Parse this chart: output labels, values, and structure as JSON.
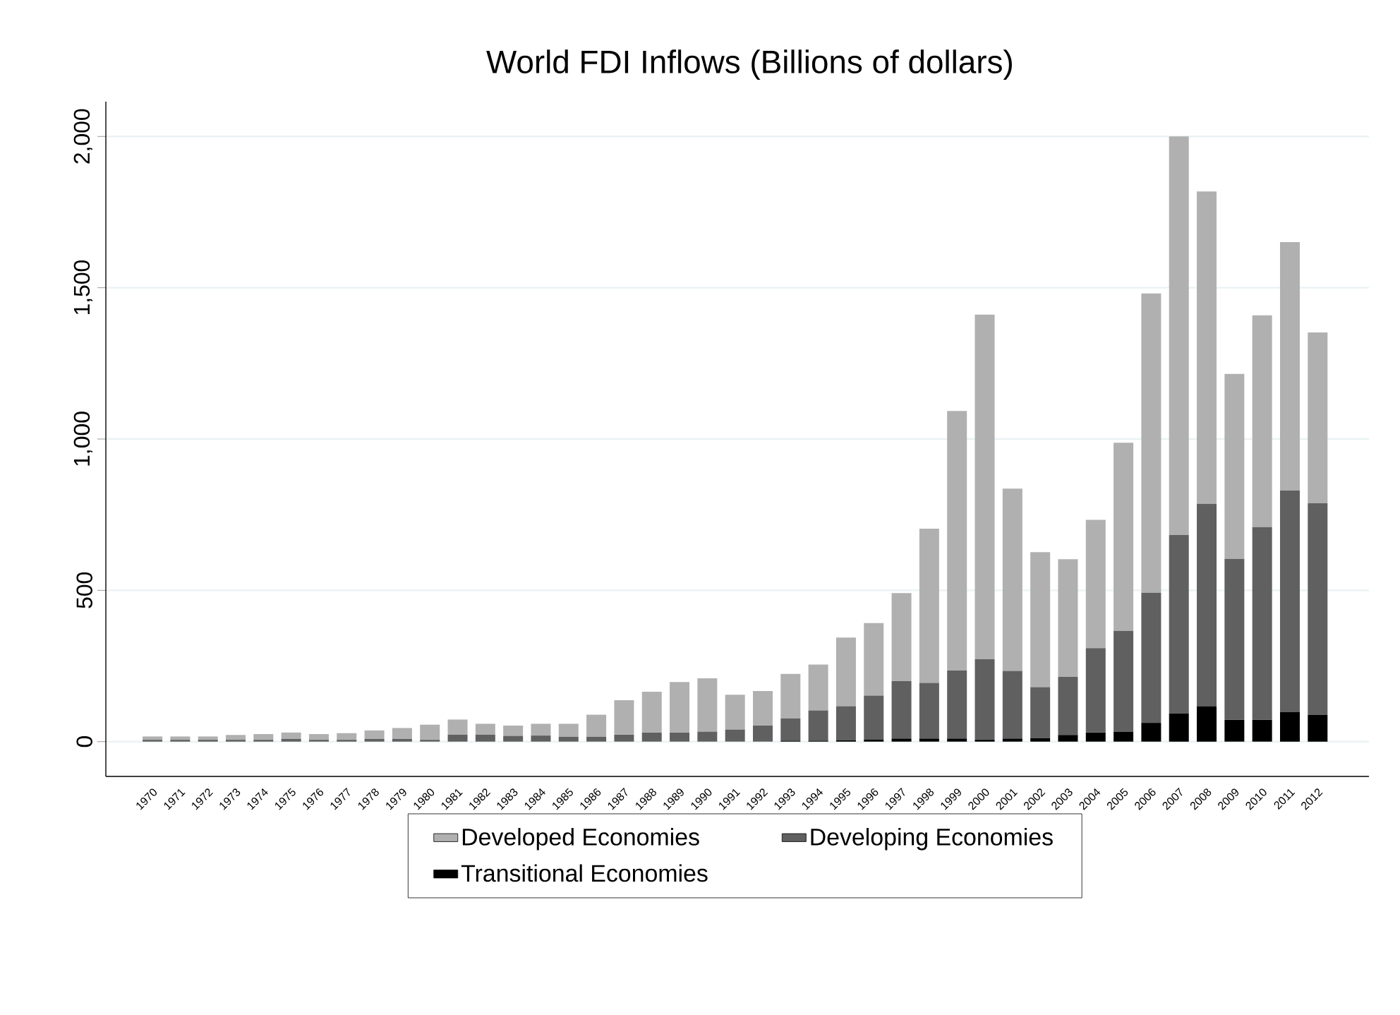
{
  "chart_data": {
    "type": "bar",
    "title": "World FDI Inflows (Billions of dollars)",
    "categories": [
      "1970",
      "1971",
      "1972",
      "1973",
      "1974",
      "1975",
      "1976",
      "1977",
      "1978",
      "1979",
      "1980",
      "1981",
      "1982",
      "1983",
      "1984",
      "1985",
      "1986",
      "1987",
      "1988",
      "1989",
      "1990",
      "1991",
      "1992",
      "1993",
      "1994",
      "1995",
      "1996",
      "1997",
      "1998",
      "1999",
      "2000",
      "2001",
      "2002",
      "2003",
      "2004",
      "2005",
      "2006",
      "2007",
      "2008",
      "2009",
      "2010",
      "2011",
      "2012"
    ],
    "stacked": true,
    "series": [
      {
        "name": "Transitional Economies",
        "color": "#000000",
        "values": [
          0,
          0,
          0,
          0,
          0,
          0,
          0,
          0,
          0,
          0,
          0,
          0,
          0,
          0,
          0,
          0,
          0,
          0,
          0,
          0,
          0,
          0,
          0,
          3,
          3,
          4,
          7,
          10,
          10,
          10,
          6,
          10,
          12,
          22,
          30,
          33,
          62,
          93,
          117,
          72,
          72,
          97,
          88
        ]
      },
      {
        "name": "Developing Economies",
        "color": "#606060",
        "values": [
          6,
          6,
          6,
          6,
          6,
          9,
          6,
          6,
          9,
          9,
          6,
          23,
          23,
          19,
          20,
          16,
          16,
          23,
          30,
          30,
          33,
          40,
          53,
          74,
          100,
          113,
          145,
          190,
          184,
          225,
          266,
          224,
          168,
          192,
          279,
          333,
          430,
          590,
          669,
          532,
          637,
          733,
          700
        ]
      },
      {
        "name": "Developed Economies",
        "color": "#b0b0b0",
        "values": [
          11,
          11,
          11,
          16,
          19,
          21,
          19,
          22,
          28,
          36,
          50,
          50,
          36,
          34,
          39,
          43,
          73,
          114,
          135,
          167,
          176,
          115,
          114,
          147,
          152,
          227,
          240,
          291,
          510,
          858,
          1139,
          602,
          446,
          389,
          424,
          622,
          989,
          1317,
          1032,
          611,
          700,
          821,
          564
        ]
      }
    ],
    "ylim": [
      -115,
      2115
    ],
    "yticks": [
      0,
      500,
      {
        "value": 1000,
        "label": "1,000"
      },
      {
        "value": 1500,
        "label": "1,500"
      },
      {
        "value": 2000,
        "label": "2,000"
      }
    ],
    "grid": "y",
    "legend": "bottom"
  }
}
